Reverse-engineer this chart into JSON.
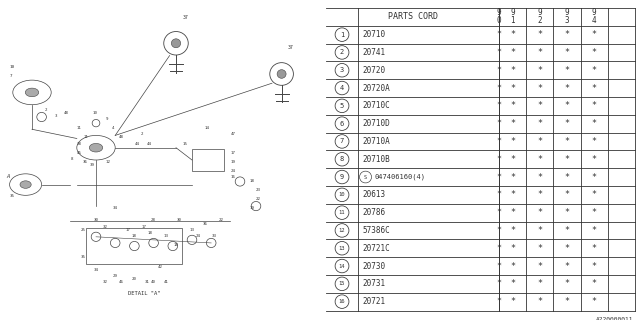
{
  "parts": [
    {
      "num": 1,
      "code": "20710"
    },
    {
      "num": 2,
      "code": "20741"
    },
    {
      "num": 3,
      "code": "20720"
    },
    {
      "num": 4,
      "code": "20720A"
    },
    {
      "num": 5,
      "code": "20710C"
    },
    {
      "num": 6,
      "code": "20710D"
    },
    {
      "num": 7,
      "code": "20710A"
    },
    {
      "num": 8,
      "code": "20710B"
    },
    {
      "num": 9,
      "code": "S047406160(4)"
    },
    {
      "num": 10,
      "code": "20613"
    },
    {
      "num": 11,
      "code": "20786"
    },
    {
      "num": 12,
      "code": "57386C"
    },
    {
      "num": 13,
      "code": "20721C"
    },
    {
      "num": 14,
      "code": "20730"
    },
    {
      "num": 15,
      "code": "20731"
    },
    {
      "num": 16,
      "code": "20721"
    }
  ],
  "year_labels": [
    "9\n0",
    "9\n1",
    "9\n2",
    "9\n3",
    "9\n4"
  ],
  "col_header": "PARTS CORD",
  "diagram_code": "A220000011",
  "bg_color": "#ffffff",
  "line_color": "#444444",
  "text_color": "#333333"
}
